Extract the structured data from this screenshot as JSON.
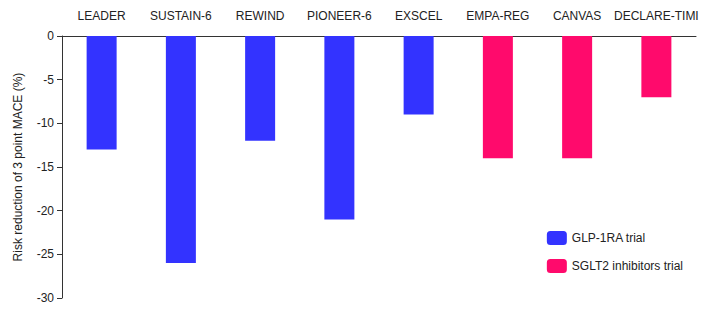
{
  "chart_data": {
    "type": "bar",
    "y_label": "Risk reduction of 3 point MACE (%)",
    "categories": [
      "LEADER",
      "SUSTAIN-6",
      "REWIND",
      "PIONEER-6",
      "EXSCEL",
      "EMPA-REG",
      "CANVAS",
      "DECLARE-TIMI"
    ],
    "series": [
      {
        "name": "GLP-1RA trial",
        "color": "#3333ff",
        "values": [
          -13,
          -26,
          -12,
          -21,
          -9,
          null,
          null,
          null
        ]
      },
      {
        "name": "SGLT2 inhibitors trial",
        "color": "#ff0a6c",
        "values": [
          null,
          null,
          null,
          null,
          null,
          -14,
          -14,
          -7
        ]
      }
    ],
    "ylim": [
      -30,
      0
    ],
    "yticks": [
      -30,
      -25,
      -20,
      -15,
      -10,
      -5,
      0
    ],
    "grid": false,
    "legend": "lower right"
  }
}
